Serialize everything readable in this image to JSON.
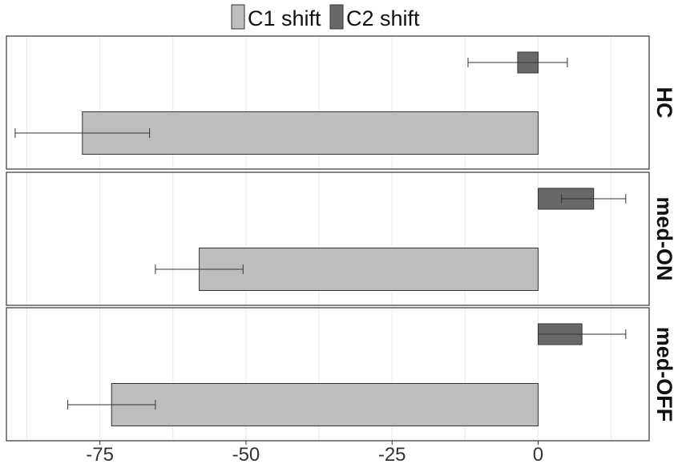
{
  "chart_data": {
    "type": "bar",
    "orientation": "horizontal",
    "legend": {
      "position": "top",
      "entries": [
        {
          "label": "C1 shift",
          "color": "#bdbdbd"
        },
        {
          "label": "C2 shift",
          "color": "#686868"
        }
      ]
    },
    "x_ticks": [
      -75,
      -50,
      -25,
      0
    ],
    "x_tick_labels": [
      "-75",
      "-50",
      "-25",
      "0"
    ],
    "xlim": [
      -91,
      19
    ],
    "grid": true,
    "bar_border_color": "#333333",
    "panels": [
      {
        "label": "HC",
        "bars": [
          {
            "series": "C2 shift",
            "value": -3.5,
            "error": 8.5
          },
          {
            "series": "C1 shift",
            "value": -78,
            "error": 11.5
          }
        ]
      },
      {
        "label": "med-ON",
        "bars": [
          {
            "series": "C2 shift",
            "value": 9.5,
            "error": 5.5
          },
          {
            "series": "C1 shift",
            "value": -58,
            "error": 7.5
          }
        ]
      },
      {
        "label": "med-OFF",
        "bars": [
          {
            "series": "C2 shift",
            "value": 7.5,
            "error": 7.5
          },
          {
            "series": "C1 shift",
            "value": -73,
            "error": 7.5
          }
        ]
      }
    ]
  }
}
